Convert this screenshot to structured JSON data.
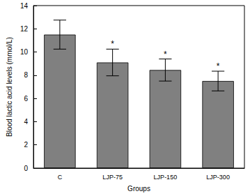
{
  "chart_data": {
    "type": "bar",
    "x_label": "Groups",
    "y_label": "Blood lactic acid levels (mmol/L)",
    "categories": [
      "C",
      "LJP-75",
      "LJP-150",
      "LJP-300"
    ],
    "values": [
      11.5,
      9.1,
      8.45,
      7.5
    ],
    "errors": [
      1.25,
      1.15,
      0.95,
      0.85
    ],
    "annotations": [
      {
        "category": "LJP-75",
        "text": "*"
      },
      {
        "category": "LJP-150",
        "text": "*"
      },
      {
        "category": "LJP-300",
        "text": "*"
      }
    ],
    "color": "#808080",
    "ylim": [
      0,
      14
    ],
    "yticks": [
      0,
      2,
      4,
      6,
      8,
      10,
      12,
      14
    ],
    "grid": false
  }
}
